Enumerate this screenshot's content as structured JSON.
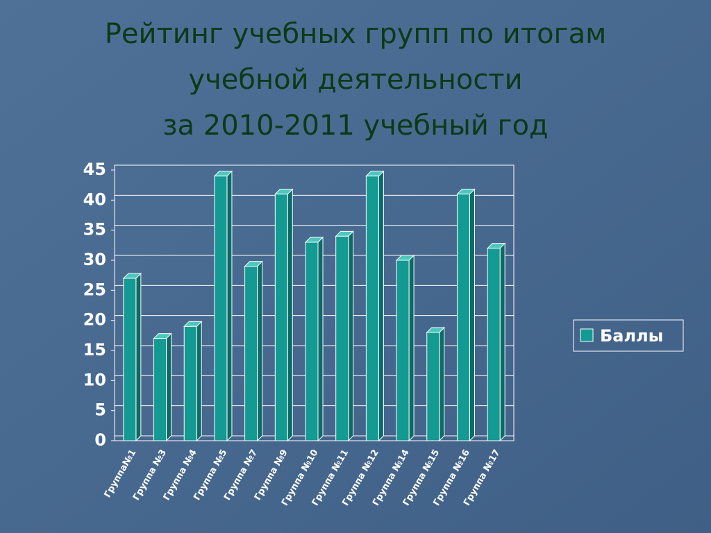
{
  "chart_data": {
    "type": "bar",
    "title": [
      "Рейтинг учебных групп по итогам",
      "учебной деятельности",
      "за 2010-2011 учебный год"
    ],
    "categories": [
      "Группа№1",
      "Группа №3",
      "Группа №4",
      "Группа №5",
      "Группа №7",
      "Группа №9",
      "Группа №10",
      "Группа №11",
      "Группа №12",
      "Группа №14",
      "Группа №15",
      "Группа №16",
      "Группа №17"
    ],
    "series": [
      {
        "name": "Баллы",
        "color": "#139a93",
        "values": [
          27,
          17,
          19,
          44,
          29,
          41,
          33,
          34,
          44,
          30,
          18,
          41,
          32
        ]
      }
    ],
    "ylim": [
      0,
      45
    ],
    "yticks": [
      0,
      5,
      10,
      15,
      20,
      25,
      30,
      35,
      40,
      45
    ],
    "grid": true,
    "legend": "right"
  }
}
